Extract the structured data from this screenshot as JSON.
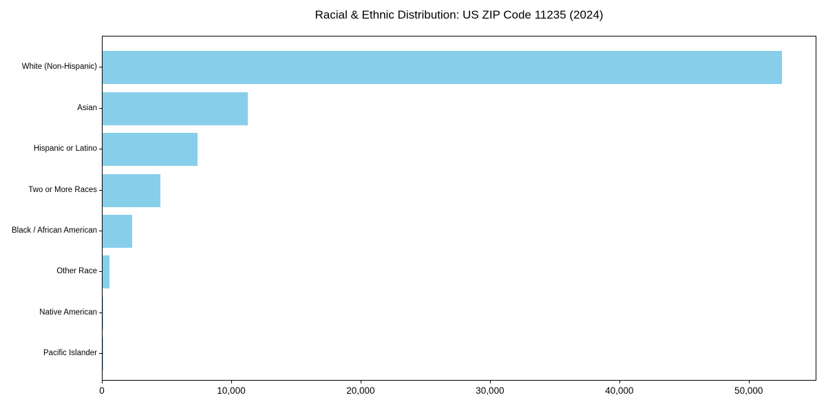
{
  "chart_data": {
    "type": "bar",
    "orientation": "horizontal",
    "title": "Racial & Ethnic Distribution: US ZIP Code 11235 (2024)",
    "categories": [
      "White (Non-Hispanic)",
      "Asian",
      "Hispanic or Latino",
      "Two or More Races",
      "Black / African American",
      "Other Race",
      "Native American",
      "Pacific Islander"
    ],
    "values": [
      52600,
      11270,
      7370,
      4490,
      2270,
      530,
      60,
      15
    ],
    "bar_color": "#87CEEB",
    "xlabel": "",
    "ylabel": "",
    "xlim": [
      0,
      55230
    ],
    "x_ticks": [
      0,
      10000,
      20000,
      30000,
      40000,
      50000
    ],
    "x_tick_labels": [
      "0",
      "10,000",
      "20,000",
      "30,000",
      "40,000",
      "50,000"
    ],
    "grid": false,
    "legend": null,
    "frame": true,
    "background_color": "#ffffff",
    "text_color": "#000000"
  }
}
